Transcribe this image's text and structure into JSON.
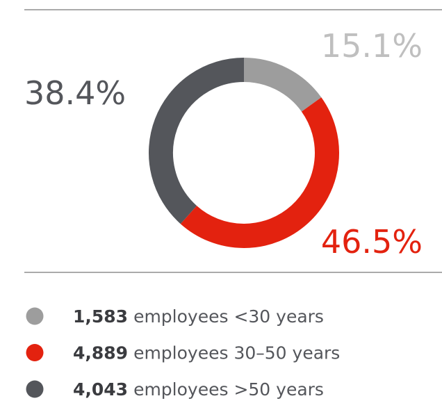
{
  "chart_data": {
    "type": "donut",
    "categories": [
      "employees <30 years",
      "employees 30–50 years",
      "employees >50 years"
    ],
    "values": [
      15.1,
      46.5,
      38.4
    ],
    "value_labels": [
      "15.1%",
      "46.5%",
      "38.4%"
    ],
    "counts": [
      1583,
      4889,
      4043
    ],
    "count_labels": [
      "1,583",
      "4,889",
      "4,043"
    ],
    "colors": [
      "#9d9d9d",
      "#e3220f",
      "#54565b"
    ]
  }
}
